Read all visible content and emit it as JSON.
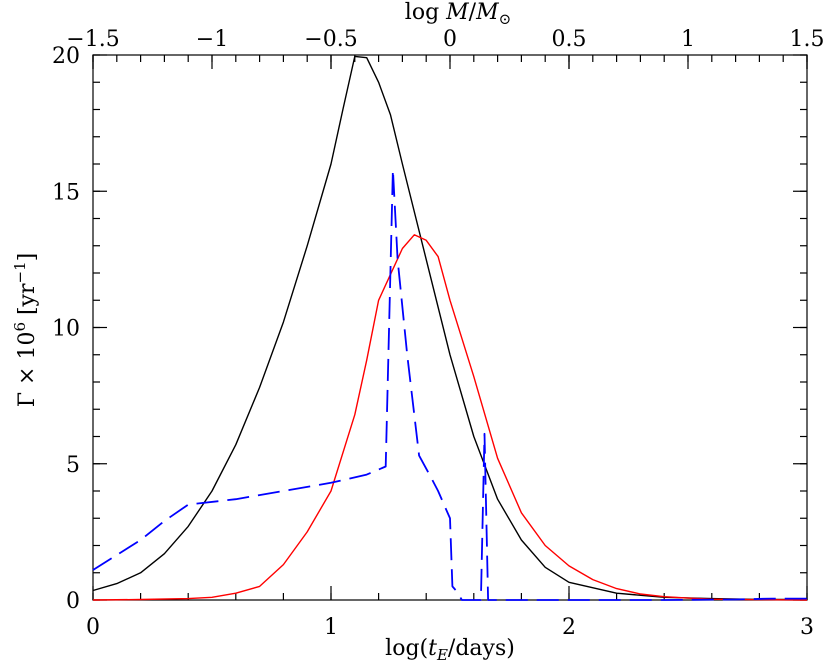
{
  "chart_data": {
    "type": "line",
    "xlabel": "log(t_E/days)",
    "ylabel": "Γ × 10^6 [yr^-1]",
    "top_xlabel": "log M/M_⊙",
    "xlim": [
      0,
      3
    ],
    "ylim": [
      0,
      20
    ],
    "top_xlim": [
      -1.5,
      1.5
    ],
    "x_ticks": [
      "0",
      "1",
      "2",
      "3"
    ],
    "y_ticks": [
      "0",
      "5",
      "10",
      "15",
      "20"
    ],
    "top_x_ticks": [
      "−1.5",
      "−1",
      "−0.5",
      "0",
      "0.5",
      "1",
      "1.5"
    ],
    "grid": false,
    "series": [
      {
        "color": "#000000",
        "style": "solid",
        "points": [
          [
            0.0,
            0.35
          ],
          [
            0.1,
            0.6
          ],
          [
            0.2,
            1.0
          ],
          [
            0.3,
            1.7
          ],
          [
            0.4,
            2.7
          ],
          [
            0.5,
            4.0
          ],
          [
            0.6,
            5.7
          ],
          [
            0.7,
            7.8
          ],
          [
            0.8,
            10.2
          ],
          [
            0.9,
            13.0
          ],
          [
            1.0,
            16.0
          ],
          [
            1.05,
            18.0
          ],
          [
            1.1,
            19.95
          ],
          [
            1.15,
            19.9
          ],
          [
            1.2,
            19.0
          ],
          [
            1.25,
            17.8
          ],
          [
            1.3,
            16.0
          ],
          [
            1.4,
            12.5
          ],
          [
            1.5,
            9.0
          ],
          [
            1.6,
            6.0
          ],
          [
            1.7,
            3.7
          ],
          [
            1.8,
            2.2
          ],
          [
            1.9,
            1.2
          ],
          [
            2.0,
            0.65
          ],
          [
            2.2,
            0.25
          ],
          [
            2.4,
            0.1
          ],
          [
            2.6,
            0.05
          ],
          [
            2.8,
            0.02
          ],
          [
            3.0,
            0.02
          ]
        ]
      },
      {
        "color": "#ff0000",
        "style": "solid",
        "points": [
          [
            0.0,
            0.0
          ],
          [
            0.2,
            0.02
          ],
          [
            0.4,
            0.05
          ],
          [
            0.5,
            0.1
          ],
          [
            0.6,
            0.25
          ],
          [
            0.7,
            0.5
          ],
          [
            0.8,
            1.3
          ],
          [
            0.9,
            2.5
          ],
          [
            1.0,
            4.0
          ],
          [
            1.1,
            6.8
          ],
          [
            1.15,
            8.8
          ],
          [
            1.2,
            11.0
          ],
          [
            1.3,
            12.9
          ],
          [
            1.35,
            13.4
          ],
          [
            1.4,
            13.2
          ],
          [
            1.45,
            12.6
          ],
          [
            1.5,
            11.0
          ],
          [
            1.6,
            8.2
          ],
          [
            1.7,
            5.2
          ],
          [
            1.8,
            3.2
          ],
          [
            1.9,
            2.0
          ],
          [
            2.0,
            1.25
          ],
          [
            2.1,
            0.75
          ],
          [
            2.2,
            0.42
          ],
          [
            2.3,
            0.22
          ],
          [
            2.4,
            0.12
          ],
          [
            2.5,
            0.07
          ],
          [
            2.6,
            0.03
          ],
          [
            2.8,
            0.01
          ],
          [
            3.0,
            0.0
          ]
        ]
      },
      {
        "color": "#0000ff",
        "style": "dashed",
        "points": [
          [
            0.0,
            1.1
          ],
          [
            0.2,
            2.2
          ],
          [
            0.3,
            2.9
          ],
          [
            0.4,
            3.5
          ],
          [
            0.6,
            3.7
          ],
          [
            0.8,
            4.0
          ],
          [
            1.0,
            4.3
          ],
          [
            1.15,
            4.6
          ],
          [
            1.23,
            4.9
          ],
          [
            1.26,
            15.8
          ],
          [
            1.28,
            12.5
          ],
          [
            1.32,
            9.0
          ],
          [
            1.37,
            5.3
          ],
          [
            1.42,
            4.5
          ],
          [
            1.45,
            4.0
          ],
          [
            1.48,
            3.4
          ],
          [
            1.5,
            3.0
          ],
          [
            1.51,
            0.5
          ],
          [
            1.53,
            0.3
          ],
          [
            1.55,
            0.0
          ],
          [
            1.6,
            0.0
          ],
          [
            1.63,
            0.0
          ],
          [
            1.645,
            6.1
          ],
          [
            1.66,
            0.0
          ],
          [
            2.0,
            0.0
          ],
          [
            2.4,
            0.0
          ],
          [
            2.7,
            0.02
          ],
          [
            2.85,
            0.05
          ],
          [
            3.0,
            0.05
          ]
        ]
      }
    ]
  }
}
